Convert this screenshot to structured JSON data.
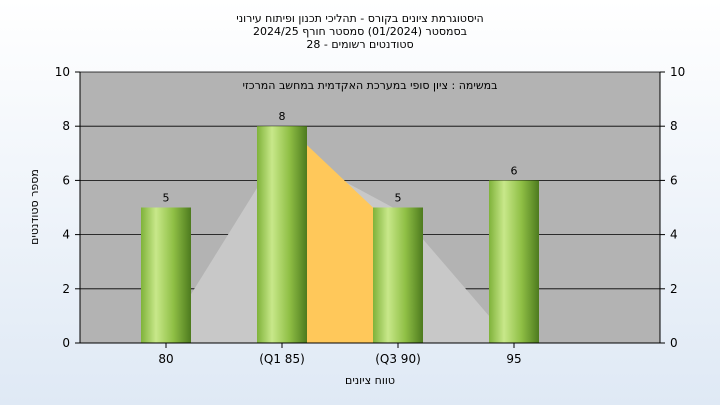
{
  "titles": {
    "line1": "היסטוגרמת ציונים בקורס - תהליכי תכנון ופיתוח עירוני",
    "line2": "בסמסטר  (01/2024)  סמסטר חורף 2024/25",
    "line3": "סטודנטים רשומים - 28"
  },
  "chart_data": {
    "type": "bar",
    "categories": [
      "80",
      "(Q1 85)",
      "(Q3 90)",
      "95"
    ],
    "values": [
      5,
      8,
      5,
      6
    ],
    "xlabel": "טווח ציונים",
    "ylabel": "מספר סטודנטים",
    "ylim": [
      0,
      10
    ],
    "yticks": [
      0,
      2,
      4,
      6,
      8,
      10
    ],
    "grid": true,
    "annotation": "במשימה : ציון סופי במערכת האקדמית במחשב המרכזי",
    "colors": {
      "plot_bg": "#b3b3b3",
      "bar_light": "#c8e88a",
      "bar_dark": "#4d7a1e",
      "area_gray": "#c8c8c8",
      "area_iqr": "#ffc85a"
    }
  }
}
